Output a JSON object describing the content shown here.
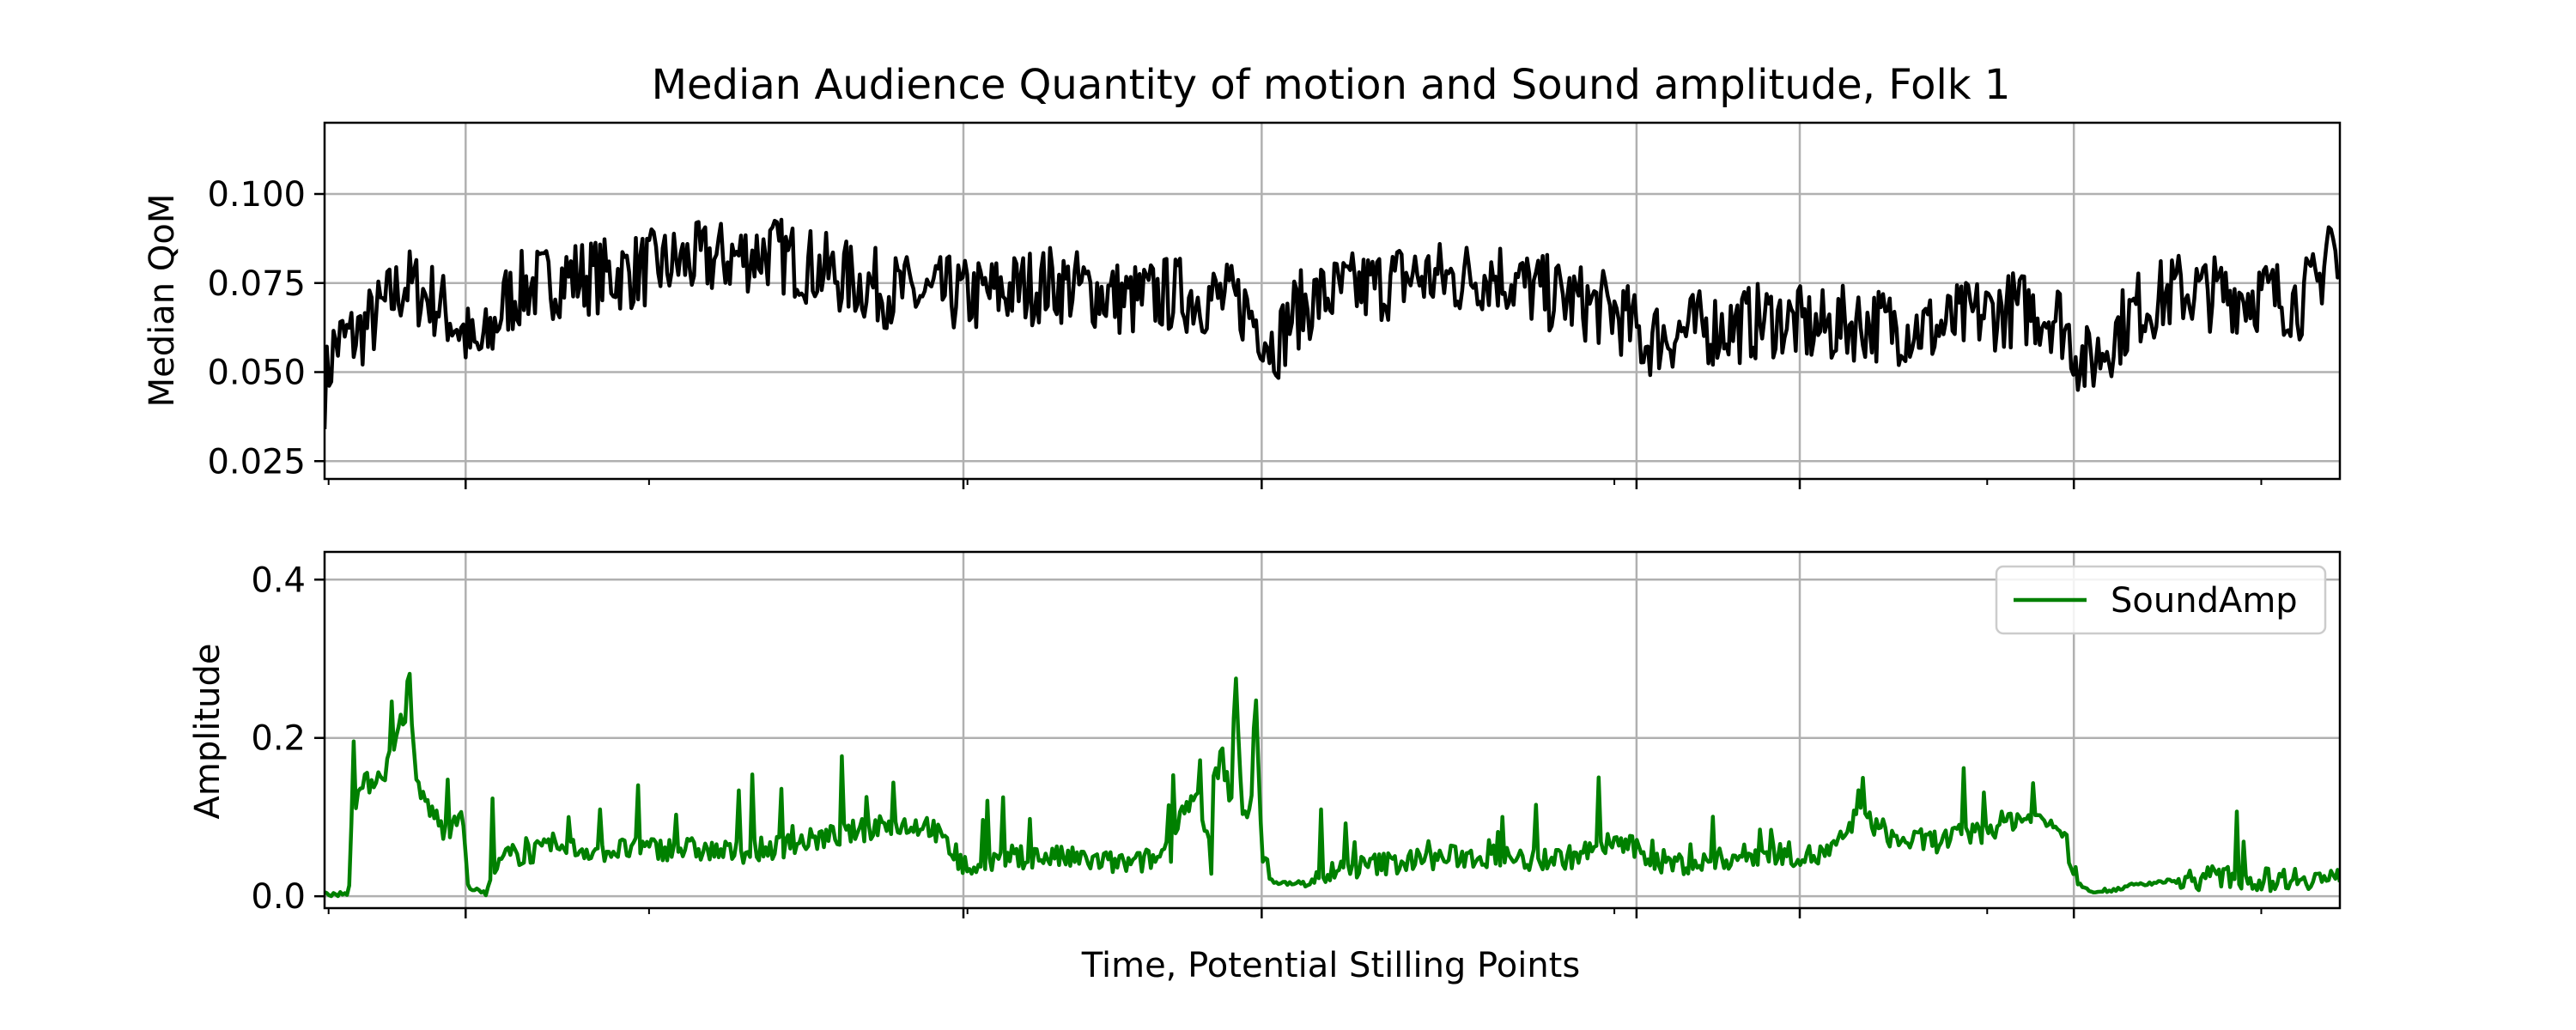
{
  "figure": {
    "title": "Median Audience Quantity of motion and Sound amplitude, Folk 1",
    "xlabel": "Time, Potential Stilling Points"
  },
  "colors": {
    "qom_line": "#000000",
    "sound_line": "#008000",
    "grid": "#b0b0b0",
    "axes": "#000000"
  },
  "chart_data": [
    {
      "type": "line",
      "title": "Median Audience Quantity of motion and Sound amplitude, Folk 1",
      "xlabel": "",
      "ylabel": "Median QoM",
      "ylim": [
        0.02,
        0.12
      ],
      "yticks": [
        0.025,
        0.05,
        0.075,
        0.1
      ],
      "ytick_labels": [
        "0.025",
        "0.050",
        "0.075",
        "0.100"
      ],
      "xlim": [
        0,
        1000
      ],
      "xgrid_positions": [
        70,
        317,
        465,
        651,
        732,
        868
      ],
      "minor_xticks": [
        2,
        161,
        319,
        640,
        825,
        961
      ],
      "grid": true,
      "series": [
        {
          "x": [
            0,
            5,
            15,
            25,
            40,
            55,
            65,
            70,
            75,
            80,
            85,
            90,
            95,
            100,
            110,
            120,
            140,
            160,
            180,
            200,
            220,
            240,
            260,
            280,
            300,
            310,
            320,
            340,
            360,
            380,
            400,
            420,
            440,
            455,
            465,
            470,
            475,
            480,
            490,
            500,
            520,
            540,
            560,
            580,
            600,
            620,
            640,
            650,
            655,
            660,
            680,
            700,
            720,
            740,
            760,
            780,
            800,
            820,
            840,
            860,
            865,
            870,
            875,
            880,
            890,
            900,
            920,
            940,
            960,
            980,
            990,
            995,
            1000
          ],
          "y": [
            0.045,
            0.058,
            0.06,
            0.065,
            0.075,
            0.07,
            0.064,
            0.06,
            0.055,
            0.058,
            0.064,
            0.07,
            0.072,
            0.074,
            0.075,
            0.077,
            0.077,
            0.079,
            0.081,
            0.082,
            0.084,
            0.08,
            0.076,
            0.073,
            0.071,
            0.072,
            0.071,
            0.073,
            0.075,
            0.073,
            0.07,
            0.072,
            0.071,
            0.069,
            0.063,
            0.058,
            0.06,
            0.066,
            0.07,
            0.072,
            0.074,
            0.077,
            0.076,
            0.078,
            0.073,
            0.07,
            0.067,
            0.062,
            0.058,
            0.06,
            0.062,
            0.063,
            0.065,
            0.062,
            0.064,
            0.063,
            0.062,
            0.066,
            0.068,
            0.066,
            0.061,
            0.055,
            0.052,
            0.055,
            0.062,
            0.068,
            0.073,
            0.072,
            0.072,
            0.07,
            0.075,
            0.092,
            0.072
          ],
          "jitter": 0.011
        }
      ]
    },
    {
      "type": "line",
      "xlabel": "Time, Potential Stilling Points",
      "ylabel": "Amplitude",
      "ylim": [
        -0.015,
        0.435
      ],
      "yticks": [
        0.0,
        0.2,
        0.4
      ],
      "ytick_labels": [
        "0.0",
        "0.2",
        "0.4"
      ],
      "xlim": [
        0,
        1000
      ],
      "xgrid_positions": [
        70,
        317,
        465,
        651,
        732,
        868
      ],
      "minor_xticks": [
        2,
        161,
        319,
        640,
        825,
        961
      ],
      "grid": true,
      "legend_position": "top-right",
      "series": [
        {
          "name": "SoundAmp",
          "x": [
            0,
            12,
            14,
            20,
            25,
            30,
            35,
            40,
            42,
            45,
            50,
            55,
            60,
            65,
            68,
            70,
            72,
            80,
            82,
            90,
            100,
            120,
            140,
            160,
            180,
            200,
            220,
            240,
            260,
            280,
            300,
            310,
            316,
            320,
            340,
            360,
            380,
            400,
            420,
            440,
            415,
            418,
            420,
            425,
            430,
            435,
            440,
            445,
            450,
            452,
            455,
            460,
            462,
            465,
            470,
            480,
            500,
            520,
            540,
            560,
            580,
            600,
            620,
            640,
            650,
            660,
            680,
            700,
            720,
            740,
            750,
            760,
            770,
            780,
            800,
            820,
            840,
            860,
            865,
            870,
            880,
            900,
            920,
            940,
            960,
            980,
            1000
          ],
          "y": [
            0.003,
            0.003,
            0.12,
            0.14,
            0.15,
            0.16,
            0.19,
            0.22,
            0.3,
            0.14,
            0.12,
            0.1,
            0.08,
            0.1,
            0.12,
            0.04,
            0.01,
            0.004,
            0.02,
            0.05,
            0.055,
            0.06,
            0.058,
            0.06,
            0.06,
            0.055,
            0.06,
            0.07,
            0.08,
            0.09,
            0.09,
            0.06,
            0.04,
            0.035,
            0.05,
            0.05,
            0.045,
            0.04,
            0.045,
            0.04,
            0.05,
            0.07,
            0.08,
            0.11,
            0.12,
            0.12,
            0.13,
            0.18,
            0.12,
            0.3,
            0.1,
            0.12,
            0.25,
            0.05,
            0.02,
            0.015,
            0.03,
            0.04,
            0.045,
            0.05,
            0.05,
            0.045,
            0.05,
            0.07,
            0.06,
            0.045,
            0.04,
            0.05,
            0.055,
            0.05,
            0.06,
            0.1,
            0.09,
            0.07,
            0.07,
            0.08,
            0.1,
            0.09,
            0.06,
            0.015,
            0.005,
            0.015,
            0.02,
            0.025,
            0.02,
            0.025,
            0.02
          ],
          "jitter": 0.03
        }
      ]
    }
  ]
}
